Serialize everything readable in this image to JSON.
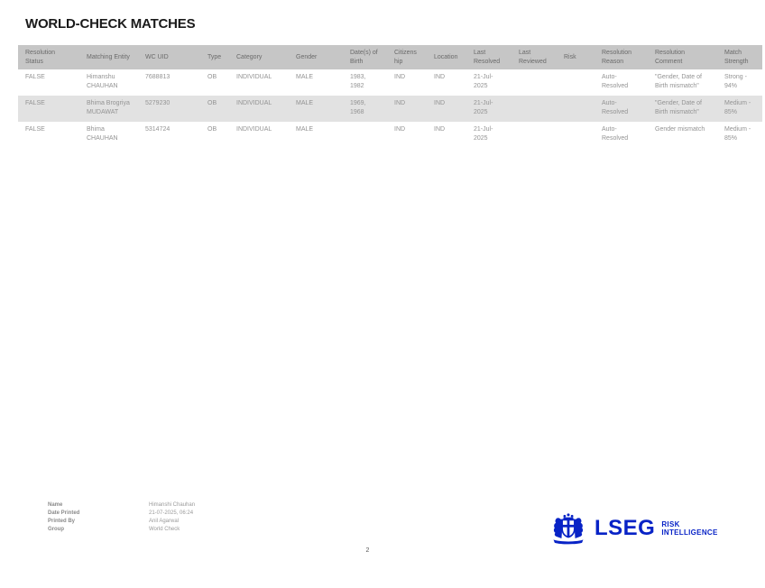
{
  "title": "WORLD-CHECK MATCHES",
  "table": {
    "headers": [
      "Resolution Status",
      "Matching Entity",
      "WC UID",
      "Type",
      "Category",
      "Gender",
      "Date(s) of Birth",
      "Citizenship",
      "Location",
      "Last Resolved",
      "Last Reviewed",
      "Risk",
      "Resolution Reason",
      "Resolution Comment",
      "Match Strength"
    ],
    "rows": [
      [
        "FALSE",
        "Himanshu CHAUHAN",
        "7688813",
        "OB",
        "INDIVIDUAL",
        "MALE",
        "1983, 1982",
        "IND",
        "IND",
        "21-Jul-2025",
        "",
        "",
        "Auto-Resolved",
        "\"Gender, Date of Birth mismatch\"",
        "Strong - 94%"
      ],
      [
        "FALSE",
        "Bhima Brogriya MUDAWAT",
        "5279230",
        "OB",
        "INDIVIDUAL",
        "MALE",
        "1969, 1968",
        "IND",
        "IND",
        "21-Jul-2025",
        "",
        "",
        "Auto-Resolved",
        "\"Gender, Date of Birth mismatch\"",
        "Medium - 85%"
      ],
      [
        "FALSE",
        "Bhima CHAUHAN",
        "5314724",
        "OB",
        "INDIVIDUAL",
        "MALE",
        "",
        "IND",
        "IND",
        "21-Jul-2025",
        "",
        "",
        "Auto-Resolved",
        "Gender mismatch",
        "Medium - 85%"
      ]
    ]
  },
  "footer": {
    "meta": [
      {
        "label": "Name",
        "value": "Himanshi Chauhan"
      },
      {
        "label": "Date Printed",
        "value": "21-07-2025, 06:24"
      },
      {
        "label": "Printed By",
        "value": "Anil Agarwal"
      },
      {
        "label": "Group",
        "value": "World Check"
      }
    ],
    "page_number": "2"
  },
  "logo": {
    "brand": "LSEG",
    "tagline_line1": "RISK",
    "tagline_line2": "INTELLIGENCE",
    "brand_color": "#0823C6"
  },
  "colors": {
    "header_bg": "#c6c6c6",
    "zebra_row_bg": "#e2e2e2",
    "header_text": "#6a6a6a",
    "body_text": "#939393",
    "title_text": "#1a1a1a"
  }
}
